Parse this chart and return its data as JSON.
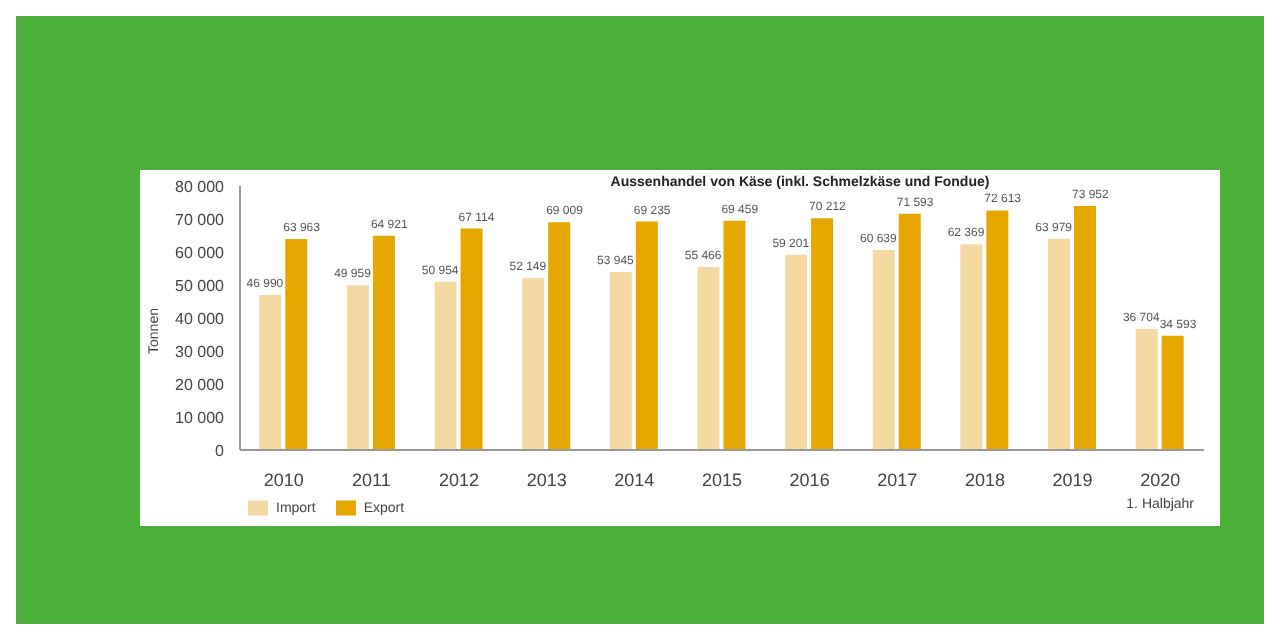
{
  "chart_data": {
    "type": "bar",
    "title": "Aussenhandel von Käse (inkl. Schmelzkäse und Fondue)",
    "ylabel": "Tonnen",
    "categories": [
      "2010",
      "2011",
      "2012",
      "2013",
      "2014",
      "2015",
      "2016",
      "2017",
      "2018",
      "2019",
      "2020"
    ],
    "annotations": [
      "1. Halbjahr"
    ],
    "series": [
      {
        "name": "Import",
        "color": "#f5d9a3",
        "values": [
          46990,
          49959,
          50954,
          52149,
          53945,
          55466,
          59201,
          60639,
          62369,
          63979,
          36704
        ],
        "value_labels": [
          "46 990",
          "49 959",
          "50 954",
          "52 149",
          "53 945",
          "55 466",
          "59 201",
          "60 639",
          "62 369",
          "63 979",
          "36 704"
        ]
      },
      {
        "name": "Export",
        "color": "#e6a800",
        "values": [
          63963,
          64921,
          67114,
          69009,
          69235,
          69459,
          70212,
          71593,
          72613,
          73952,
          34593
        ],
        "value_labels": [
          "63 963",
          "64 921",
          "67 114",
          "69 009",
          "69 235",
          "69 459",
          "70 212",
          "71 593",
          "72 613",
          "73 952",
          "34 593"
        ]
      }
    ],
    "ylim": [
      0,
      80000
    ],
    "yticks": [
      {
        "value": 0,
        "label": "0"
      },
      {
        "value": 10000,
        "label": "10 000"
      },
      {
        "value": 20000,
        "label": "20 000"
      },
      {
        "value": 30000,
        "label": "30 000"
      },
      {
        "value": 40000,
        "label": "40 000"
      },
      {
        "value": 50000,
        "label": "50 000"
      },
      {
        "value": 60000,
        "label": "60 000"
      },
      {
        "value": 70000,
        "label": "70 000"
      },
      {
        "value": 80000,
        "label": "80 000"
      }
    ],
    "grid": false,
    "legend": "bottom left"
  }
}
